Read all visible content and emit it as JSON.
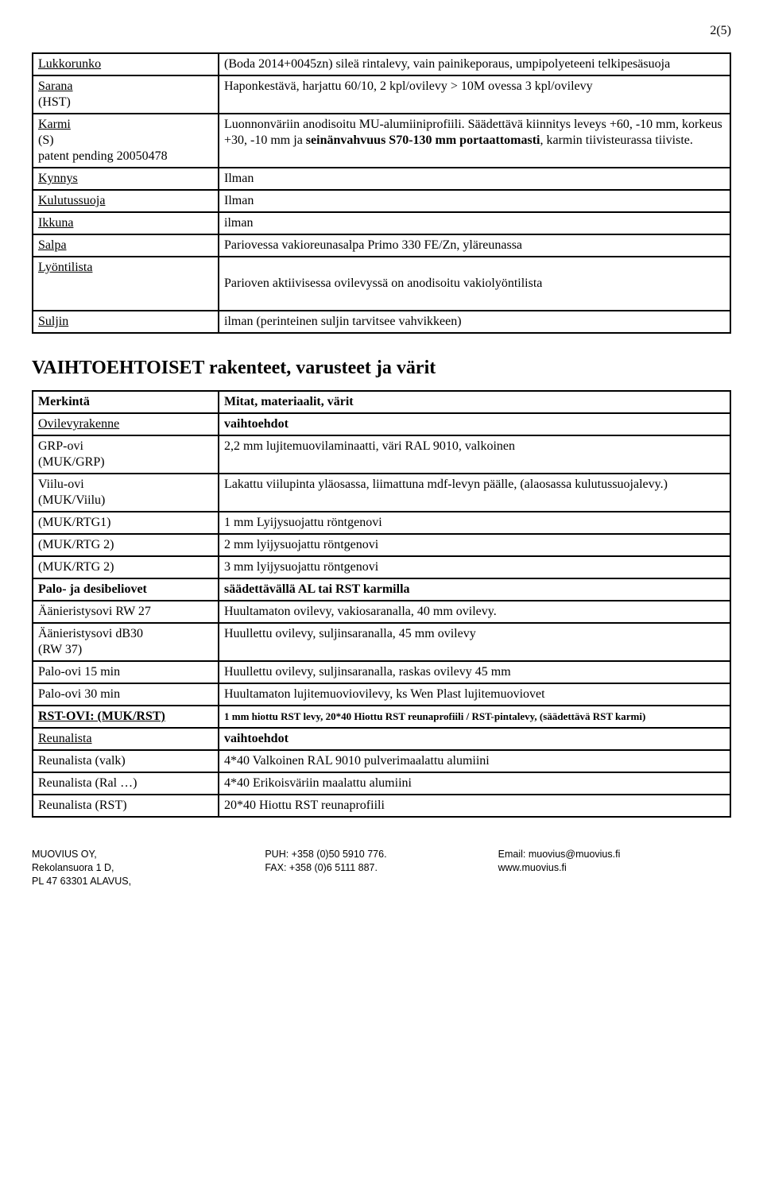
{
  "page_number": "2(5)",
  "table1": {
    "rows": [
      {
        "label_html": "<span class='ul'>Lukkorunko</span>",
        "value_html": "(Boda 2014+0045zn) sileä rintalevy, vain painikeporaus, umpipolyeteeni telkipesäsuoja"
      },
      {
        "label_html": "<span class='ul'>Sarana</span><br>(HST)",
        "value_html": "Haponkestävä, harjattu 60/10, 2 kpl/ovilevy > 10M ovessa 3 kpl/ovilevy"
      },
      {
        "label_html": "<span class='ul'>Karmi</span><br>(S)<br>patent pending 20050478",
        "value_html": "Luonnonväriin anodisoitu MU-alumiiniprofiili. Säädettävä kiinnitys leveys +60, -10 mm, korkeus +30, -10 mm ja <span class='b'>seinänvahvuus S70-130 mm portaattomasti</span>, karmin tiivisteurassa tiiviste."
      },
      {
        "label_html": "<span class='ul'>Kynnys</span>",
        "value_html": "Ilman"
      },
      {
        "label_html": "<span class='ul'>Kulutussuoja</span>",
        "value_html": "Ilman"
      },
      {
        "label_html": "<span class='ul'>Ikkuna</span>",
        "value_html": "ilman"
      },
      {
        "label_html": "<span class='ul'>Salpa</span>",
        "value_html": "Pariovessa vakioreunasalpa Primo 330 FE/Zn, yläreunassa"
      },
      {
        "label_html": "<span class='ul'>Lyöntilista</span>",
        "value_html": "<br>Parioven aktiivisessa ovilevyssä on anodisoitu vakiolyöntilista<br>&nbsp;"
      },
      {
        "label_html": "<span class='ul'>Suljin</span>",
        "value_html": "ilman (perinteinen suljin tarvitsee vahvikkeen)"
      }
    ]
  },
  "section_heading": "VAIHTOEHTOISET rakenteet, varusteet ja värit",
  "table2": {
    "rows": [
      {
        "label_html": "<span class='b'>Merkintä</span>",
        "value_html": "<span class='b'>Mitat, materiaalit, värit</span>"
      },
      {
        "label_html": "<span class='ul'>Ovilevyrakenne</span>",
        "value_html": "<span class='b'>vaihtoehdot</span>"
      },
      {
        "label_html": "GRP-ovi<br>(MUK/GRP)",
        "value_html": "2,2 mm lujitemuovilaminaatti, väri RAL 9010, valkoinen"
      },
      {
        "label_html": "Viilu-ovi<br>(MUK/Viilu)",
        "value_html": "Lakattu viilupinta yläosassa, liimattuna mdf-levyn päälle, (alaosassa kulutussuojalevy.)"
      },
      {
        "label_html": "(MUK/RTG1)",
        "value_html": "1 mm Lyijysuojattu röntgenovi"
      },
      {
        "label_html": "(MUK/RTG 2)",
        "value_html": "2 mm lyijysuojattu röntgenovi"
      },
      {
        "label_html": "(MUK/RTG 2)",
        "value_html": "3 mm lyijysuojattu röntgenovi"
      },
      {
        "label_html": "<span class='b'>Palo- ja desibeliovet</span>",
        "value_html": "<span class='b'>säädettävällä AL tai RST karmilla</span>"
      },
      {
        "label_html": "Äänieristysovi RW 27",
        "value_html": "Huultamaton ovilevy, vakiosaranalla, 40 mm ovilevy."
      },
      {
        "label_html": "Äänieristysovi dB30<br>(RW 37)",
        "value_html": "Huullettu ovilevy, suljinsaranalla, 45 mm ovilevy"
      },
      {
        "label_html": "Palo-ovi 15 min",
        "value_html": "Huullettu ovilevy, suljinsaranalla, raskas ovilevy 45 mm"
      },
      {
        "label_html": "Palo-ovi 30 min",
        "value_html": "Huultamaton lujitemuoviovilevy, ks Wen Plast lujitemuoviovet"
      },
      {
        "label_html": "<span class='ul b'>RST-OVI: (MUK/RST)</span>",
        "value_html": "<span class='smaller b'>1 mm hiottu RST levy, 20*40 Hiottu RST reunaprofiili / RST-pintalevy, (säädettävä RST karmi)</span>"
      },
      {
        "label_html": "<span class='ul'>Reunalista</span>",
        "value_html": "<span class='b'>vaihtoehdot</span>"
      },
      {
        "label_html": "Reunalista (valk)",
        "value_html": "4*40 Valkoinen RAL 9010 pulverimaalattu alumiini"
      },
      {
        "label_html": "Reunalista (Ral …)",
        "value_html": "4*40 Erikoisväriin maalattu alumiini"
      },
      {
        "label_html": "Reunalista (RST)",
        "value_html": "20*40 Hiottu RST reunaprofiili"
      }
    ]
  },
  "footer": {
    "col1": [
      "MUOVIUS OY,",
      "Rekolansuora 1 D,",
      "PL 47 63301 ALAVUS,"
    ],
    "col2": [
      "PUH: +358 (0)50 5910 776.",
      "FAX: +358 (0)6 5111 887."
    ],
    "col3": [
      "Email: muovius@muovius.fi",
      "www.muovius.fi"
    ]
  }
}
